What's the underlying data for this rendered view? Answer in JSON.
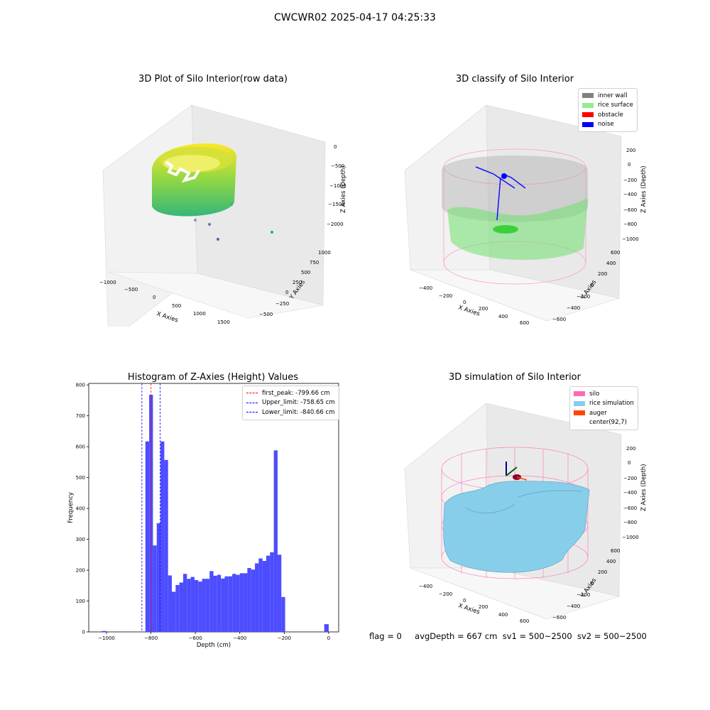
{
  "figure": {
    "suptitle": "CWCWR02 2025-04-17 04:25:33",
    "footer": {
      "flag": "flag = 0",
      "avg": "avgDepth = 667 cm",
      "sv1": "sv1 = 500~2500",
      "sv2": "sv2 = 500~2500"
    }
  },
  "chart_data": [
    {
      "type": "scatter",
      "title": "3D Plot of Silo Interior(row data)",
      "xlabel": "X Axies",
      "ylabel": "Y Axies",
      "zlabel": "Z Axies (Depth)",
      "x_ticks": [
        "−1000",
        "−500",
        "0",
        "500",
        "1000",
        "1500"
      ],
      "y_ticks": [
        "−500",
        "−250",
        "0",
        "250",
        "500",
        "750",
        "1000"
      ],
      "z_ticks": [
        "0",
        "−500",
        "−1000",
        "−1500",
        "−2000"
      ],
      "colormap": "viridis"
    },
    {
      "type": "scatter",
      "title": "3D classify of Silo Interior",
      "xlabel": "X Axies",
      "ylabel": "Y Axies",
      "zlabel": "Z Axies (Depth)",
      "x_ticks": [
        "−400",
        "−200",
        "0",
        "200",
        "400",
        "600"
      ],
      "y_ticks": [
        "−600",
        "−400",
        "−200",
        "0",
        "200",
        "400",
        "600"
      ],
      "z_ticks": [
        "200",
        "0",
        "−200",
        "−400",
        "−600",
        "−800",
        "−1000"
      ],
      "legend": [
        {
          "label": "inner wall",
          "color": "#808080"
        },
        {
          "label": "rice surface",
          "color": "#90ee90"
        },
        {
          "label": "obstacle",
          "color": "#ff0000"
        },
        {
          "label": "noise",
          "color": "#0000ff"
        }
      ]
    },
    {
      "type": "bar",
      "title": "Histogram of Z-Axies (Height) Values",
      "xlabel": "Depth (cm)",
      "ylabel": "Frequency",
      "xlim": [
        -1080,
        45
      ],
      "ylim": [
        0,
        805
      ],
      "x_ticks": [
        -1000,
        -800,
        -600,
        -400,
        -200,
        0
      ],
      "x_tick_labels": [
        "−1000",
        "−800",
        "−600",
        "−400",
        "−200",
        "0"
      ],
      "y_ticks": [
        0,
        100,
        200,
        300,
        400,
        500,
        600,
        700,
        800
      ],
      "bar_color": "#4d4dff",
      "bins": [
        {
          "x0": -1022,
          "x1": -1000,
          "value": 3
        },
        {
          "x0": -825,
          "x1": -808,
          "value": 617
        },
        {
          "x0": -808,
          "x1": -791,
          "value": 768
        },
        {
          "x0": -791,
          "x1": -774,
          "value": 280
        },
        {
          "x0": -774,
          "x1": -757,
          "value": 352
        },
        {
          "x0": -757,
          "x1": -740,
          "value": 617
        },
        {
          "x0": -740,
          "x1": -723,
          "value": 557
        },
        {
          "x0": -723,
          "x1": -706,
          "value": 183
        },
        {
          "x0": -706,
          "x1": -689,
          "value": 130
        },
        {
          "x0": -689,
          "x1": -672,
          "value": 152
        },
        {
          "x0": -672,
          "x1": -655,
          "value": 160
        },
        {
          "x0": -655,
          "x1": -638,
          "value": 188
        },
        {
          "x0": -638,
          "x1": -621,
          "value": 172
        },
        {
          "x0": -621,
          "x1": -604,
          "value": 178
        },
        {
          "x0": -604,
          "x1": -587,
          "value": 168
        },
        {
          "x0": -587,
          "x1": -570,
          "value": 163
        },
        {
          "x0": -570,
          "x1": -553,
          "value": 172
        },
        {
          "x0": -553,
          "x1": -536,
          "value": 172
        },
        {
          "x0": -536,
          "x1": -519,
          "value": 197
        },
        {
          "x0": -519,
          "x1": -502,
          "value": 182
        },
        {
          "x0": -502,
          "x1": -485,
          "value": 185
        },
        {
          "x0": -485,
          "x1": -468,
          "value": 173
        },
        {
          "x0": -468,
          "x1": -451,
          "value": 180
        },
        {
          "x0": -451,
          "x1": -434,
          "value": 180
        },
        {
          "x0": -434,
          "x1": -417,
          "value": 188
        },
        {
          "x0": -417,
          "x1": -400,
          "value": 185
        },
        {
          "x0": -400,
          "x1": -383,
          "value": 190
        },
        {
          "x0": -383,
          "x1": -366,
          "value": 190
        },
        {
          "x0": -366,
          "x1": -349,
          "value": 207
        },
        {
          "x0": -349,
          "x1": -332,
          "value": 202
        },
        {
          "x0": -332,
          "x1": -315,
          "value": 222
        },
        {
          "x0": -315,
          "x1": -298,
          "value": 238
        },
        {
          "x0": -298,
          "x1": -281,
          "value": 230
        },
        {
          "x0": -281,
          "x1": -264,
          "value": 247
        },
        {
          "x0": -264,
          "x1": -247,
          "value": 258
        },
        {
          "x0": -247,
          "x1": -230,
          "value": 588
        },
        {
          "x0": -230,
          "x1": -213,
          "value": 250
        },
        {
          "x0": -213,
          "x1": -196,
          "value": 113
        },
        {
          "x0": -20,
          "x1": 0,
          "value": 25
        }
      ],
      "vlines": [
        {
          "x": -799.66,
          "color": "#ff0000",
          "label": "first_peak: -799.66 cm"
        },
        {
          "x": -758.65,
          "color": "#0000ff",
          "label": "Upper_limit: -758.65 cm"
        },
        {
          "x": -840.66,
          "color": "#0000ff",
          "label": "Lower_limit: -840.66 cm"
        }
      ],
      "legend_position": "upper right"
    },
    {
      "type": "surface",
      "title": "3D simulation of Silo Interior",
      "xlabel": "X Axies",
      "ylabel": "Y Axies",
      "zlabel": "Z Axies (Depth)",
      "x_ticks": [
        "−400",
        "−200",
        "0",
        "200",
        "400",
        "600"
      ],
      "y_ticks": [
        "−600",
        "−400",
        "−200",
        "0",
        "200",
        "400",
        "600"
      ],
      "z_ticks": [
        "200",
        "0",
        "−200",
        "−400",
        "−600",
        "−800",
        "−1000"
      ],
      "legend": [
        {
          "label": "silo",
          "color": "#ff69b4"
        },
        {
          "label": "rice simulation",
          "color": "#87ceeb"
        },
        {
          "label": "auger",
          "color": "#ff4500"
        },
        {
          "label": "center(92,7)",
          "color": ""
        }
      ]
    }
  ]
}
